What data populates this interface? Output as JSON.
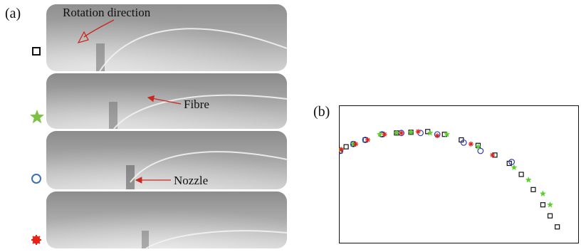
{
  "figure": {
    "panel_a_label": "(a)",
    "panel_b_label": "(b)"
  },
  "panel_a": {
    "annotations": {
      "rotation": "Rotation direction",
      "fibre": "Fibre",
      "nozzle": "Nozzle"
    },
    "rows": [
      {
        "marker": "square",
        "marker_color": "#111111"
      },
      {
        "marker": "star",
        "marker_color": "#7cc142"
      },
      {
        "marker": "circle",
        "marker_color": "#3a6fb6"
      },
      {
        "marker": "asterisk",
        "marker_color": "#e2231a"
      }
    ],
    "colors": {
      "annotation_arrow": "#c8281e"
    }
  },
  "chart_data": {
    "type": "scatter",
    "xlim": [
      0,
      100
    ],
    "ylim": [
      0,
      100
    ],
    "grid": false,
    "series": [
      {
        "marker": "square",
        "color": "#111111",
        "points": [
          [
            0.5,
            67
          ],
          [
            3,
            70
          ],
          [
            6,
            72
          ],
          [
            11,
            75
          ],
          [
            18,
            79
          ],
          [
            24,
            80
          ],
          [
            30,
            80.5
          ],
          [
            37,
            81
          ],
          [
            44,
            79
          ],
          [
            51,
            75
          ],
          [
            58,
            71
          ],
          [
            65,
            64
          ],
          [
            71,
            58
          ],
          [
            76,
            50
          ],
          [
            81,
            39
          ],
          [
            85,
            28
          ],
          [
            88,
            20
          ],
          [
            91,
            12
          ]
        ]
      },
      {
        "marker": "circle",
        "color": "#2e3db8",
        "points": [
          [
            0.5,
            67
          ],
          [
            6,
            72
          ],
          [
            11,
            75
          ],
          [
            18,
            79
          ],
          [
            26,
            80
          ],
          [
            34,
            80
          ],
          [
            41,
            79
          ],
          [
            52,
            73
          ],
          [
            59,
            67
          ],
          [
            72,
            59
          ]
        ]
      },
      {
        "marker": "star",
        "color": "#5ad12a",
        "points": [
          [
            0.5,
            68
          ],
          [
            6,
            72
          ],
          [
            17,
            79
          ],
          [
            24,
            80
          ],
          [
            30,
            80.5
          ],
          [
            38,
            80
          ],
          [
            45,
            79
          ],
          [
            58,
            70
          ],
          [
            73,
            55
          ],
          [
            79,
            46
          ],
          [
            85,
            36
          ],
          [
            88,
            28
          ]
        ]
      },
      {
        "marker": "asterisk",
        "color": "#e2231a",
        "points": [
          [
            1,
            68
          ],
          [
            7,
            72
          ],
          [
            12,
            75
          ],
          [
            19,
            79
          ],
          [
            26,
            80
          ],
          [
            33,
            81
          ],
          [
            41,
            78
          ],
          [
            55,
            72
          ],
          [
            64,
            64
          ]
        ]
      }
    ]
  }
}
